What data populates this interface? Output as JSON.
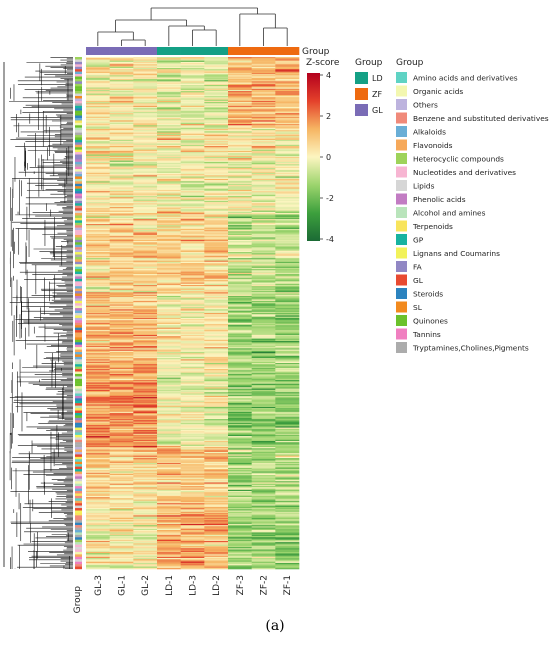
{
  "chart_data": {
    "type": "heatmap",
    "caption": "(a)",
    "columns": [
      "GL-3",
      "GL-1",
      "GL-2",
      "LD-1",
      "LD-3",
      "LD-2",
      "ZF-3",
      "ZF-2",
      "ZF-1"
    ],
    "column_groups": [
      "GL",
      "GL",
      "GL",
      "LD",
      "LD",
      "LD",
      "ZF",
      "ZF",
      "ZF"
    ],
    "row_count": 420,
    "column_annotation_title": "Group",
    "row_annotation_label": "Group",
    "colorbar": {
      "title": "Z-score",
      "range": [
        -4,
        4
      ],
      "ticks": [
        "4",
        "2",
        "0",
        "-2",
        "-4"
      ],
      "colors": [
        "#1b6a35",
        "#3da03d",
        "#9cd46d",
        "#fcf5c0",
        "#f6b563",
        "#e4412b",
        "#b3001d"
      ]
    },
    "sample_group_legend": {
      "title": "Group",
      "items": [
        {
          "label": "LD",
          "color": "#14a085"
        },
        {
          "label": "ZF",
          "color": "#ee6a10"
        },
        {
          "label": "GL",
          "color": "#7a6cb6"
        }
      ]
    },
    "class_legend": {
      "title": "Group",
      "items": [
        {
          "label": "Amino acids and derivatives",
          "color": "#5fd3c4"
        },
        {
          "label": "Organic acids",
          "color": "#f3f7b0"
        },
        {
          "label": "Others",
          "color": "#bdb3de"
        },
        {
          "label": "Benzene and substituted derivatives",
          "color": "#f08a7a"
        },
        {
          "label": "Alkaloids",
          "color": "#6aaed6"
        },
        {
          "label": "Flavonoids",
          "color": "#f6a95a"
        },
        {
          "label": "Heterocyclic compounds",
          "color": "#9ed35a"
        },
        {
          "label": "Nucleotides and derivatives",
          "color": "#f7b5d2"
        },
        {
          "label": "Lipids",
          "color": "#d6d6d6"
        },
        {
          "label": "Phenolic acids",
          "color": "#c27cc3"
        },
        {
          "label": "Alcohol and amines",
          "color": "#b9e4bb"
        },
        {
          "label": "Terpenoids",
          "color": "#f8e45c"
        },
        {
          "label": "GP",
          "color": "#17b3a0"
        },
        {
          "label": "Lignans and Coumarins",
          "color": "#f2f25a"
        },
        {
          "label": "FA",
          "color": "#9187c4"
        },
        {
          "label": "GL",
          "color": "#e84a31"
        },
        {
          "label": "Steroids",
          "color": "#2c83bf"
        },
        {
          "label": "SL",
          "color": "#f28a1e"
        },
        {
          "label": "Quinones",
          "color": "#6cc12c"
        },
        {
          "label": "Tannins",
          "color": "#f07fc0"
        },
        {
          "label": "Tryptamines,Cholines,Pigments",
          "color": "#acacac"
        }
      ]
    }
  }
}
